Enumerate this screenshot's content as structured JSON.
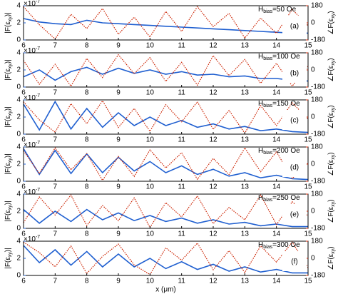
{
  "chart_data": [
    {
      "type": "line",
      "panel_label": "(a)",
      "annotation": {
        "symbol": "H",
        "subscript": "bias",
        "text": "=50 Oe"
      },
      "ylabel": {
        "main": "|F(ε",
        "sub": "xy",
        "end": ")|"
      },
      "y2label": {
        "main": "∠F(ε",
        "sub": "xy",
        "end": ")"
      },
      "multiplier": {
        "base": "×10",
        "exp": "-7"
      },
      "x": [
        6,
        6.5,
        7,
        7.5,
        8,
        8.5,
        9,
        9.5,
        10,
        10.5,
        11,
        11.5,
        12,
        12.5,
        13,
        13.5,
        14,
        14.5,
        15
      ],
      "xlim": [
        6,
        15
      ],
      "xticks": [
        6,
        7,
        8,
        9,
        10,
        11,
        12,
        13,
        14,
        15
      ],
      "ylim": [
        0,
        4
      ],
      "yticks": [
        0,
        2,
        4
      ],
      "y2lim": [
        -180,
        180
      ],
      "y2ticks": [
        -180,
        0,
        180
      ],
      "series": [
        {
          "name": "|F|",
          "color": "#1f5fd0",
          "values": [
            2.5,
            2.1,
            1.9,
            1.8,
            2.3,
            2.0,
            1.9,
            1.8,
            1.7,
            1.6,
            1.5,
            1.4,
            1.3,
            1.2,
            1.1,
            1.0,
            0.9,
            0.8,
            0.8
          ]
        },
        {
          "name": "phase",
          "color": "#cc2200",
          "axis": "y2",
          "values": [
            170,
            -20,
            -170,
            90,
            -60,
            150,
            -120,
            60,
            -150,
            120,
            -90,
            170,
            -40,
            100,
            -160,
            50,
            -110,
            140,
            -30
          ]
        }
      ]
    },
    {
      "type": "line",
      "panel_label": "(b)",
      "annotation": {
        "symbol": "H",
        "subscript": "bias",
        "text": "=100 Oe"
      },
      "ylabel": {
        "main": "|F(ε",
        "sub": "xy",
        "end": ")|"
      },
      "y2label": {
        "main": "∠F(ε",
        "sub": "xy",
        "end": ")"
      },
      "multiplier": {
        "base": "×10",
        "exp": "-7"
      },
      "x": [
        6,
        6.5,
        7,
        7.5,
        8,
        8.5,
        9,
        9.5,
        10,
        10.5,
        11,
        11.5,
        12,
        12.5,
        13,
        13.5,
        14,
        14.5,
        15
      ],
      "xlim": [
        6,
        15
      ],
      "xticks": [
        6,
        7,
        8,
        9,
        10,
        11,
        12,
        13,
        14,
        15
      ],
      "ylim": [
        0,
        4
      ],
      "yticks": [
        0,
        2,
        4
      ],
      "y2lim": [
        -180,
        180
      ],
      "y2ticks": [
        -180,
        0,
        180
      ],
      "series": [
        {
          "name": "|F|",
          "color": "#1f5fd0",
          "values": [
            1.2,
            2.0,
            0.8,
            1.8,
            2.3,
            1.5,
            2.2,
            1.6,
            2.0,
            1.5,
            1.8,
            1.4,
            1.5,
            1.2,
            1.3,
            1.0,
            1.0,
            0.8,
            0.7
          ]
        },
        {
          "name": "phase",
          "color": "#cc2200",
          "axis": "y2",
          "values": [
            100,
            -150,
            60,
            -170,
            120,
            -80,
            160,
            -40,
            130,
            -120,
            80,
            -160,
            150,
            -60,
            110,
            -140,
            70,
            -170,
            40
          ]
        }
      ]
    },
    {
      "type": "line",
      "panel_label": "(c)",
      "annotation": {
        "symbol": "H",
        "subscript": "bias",
        "text": "=150 Oe"
      },
      "ylabel": {
        "main": "|F(ε",
        "sub": "xy",
        "end": ")|"
      },
      "y2label": {
        "main": "∠F(ε",
        "sub": "xy",
        "end": ")"
      },
      "multiplier": {
        "base": "×10",
        "exp": "-7"
      },
      "x": [
        6,
        6.5,
        7,
        7.5,
        8,
        8.5,
        9,
        9.5,
        10,
        10.5,
        11,
        11.5,
        12,
        12.5,
        13,
        13.5,
        14,
        14.5,
        15
      ],
      "xlim": [
        6,
        15
      ],
      "xticks": [
        6,
        7,
        8,
        9,
        10,
        11,
        12,
        13,
        14,
        15
      ],
      "ylim": [
        0,
        4
      ],
      "yticks": [
        0,
        2,
        4
      ],
      "y2lim": [
        -180,
        180
      ],
      "y2ticks": [
        -180,
        0,
        180
      ],
      "series": [
        {
          "name": "|F|",
          "color": "#1f5fd0",
          "values": [
            3.5,
            0.5,
            3.8,
            0.6,
            3.0,
            0.8,
            2.5,
            1.0,
            2.0,
            1.0,
            1.6,
            0.8,
            1.2,
            0.6,
            0.9,
            0.4,
            0.6,
            0.3,
            0.2
          ]
        },
        {
          "name": "phase",
          "color": "#cc2200",
          "axis": "y2",
          "values": [
            160,
            -30,
            -160,
            140,
            -70,
            170,
            -110,
            90,
            -150,
            130,
            -50,
            160,
            -130,
            70,
            -170,
            120,
            -90,
            150,
            -20
          ]
        }
      ]
    },
    {
      "type": "line",
      "panel_label": "(d)",
      "annotation": {
        "symbol": "H",
        "subscript": "bias",
        "text": "=200 Oe"
      },
      "ylabel": {
        "main": "|F(ε",
        "sub": "xy",
        "end": ")|"
      },
      "y2label": {
        "main": "∠F(ε",
        "sub": "xy",
        "end": ")"
      },
      "multiplier": {
        "base": "×10",
        "exp": "-7"
      },
      "x": [
        6,
        6.5,
        7,
        7.5,
        8,
        8.5,
        9,
        9.5,
        10,
        10.5,
        11,
        11.5,
        12,
        12.5,
        13,
        13.5,
        14,
        14.5,
        15
      ],
      "xlim": [
        6,
        15
      ],
      "xticks": [
        6,
        7,
        8,
        9,
        10,
        11,
        12,
        13,
        14,
        15
      ],
      "ylim": [
        0,
        4
      ],
      "yticks": [
        0,
        2,
        4
      ],
      "y2lim": [
        -180,
        180
      ],
      "y2ticks": [
        -180,
        0,
        180
      ],
      "series": [
        {
          "name": "|F|",
          "color": "#1f5fd0",
          "values": [
            3.8,
            0.8,
            3.6,
            0.9,
            3.2,
            1.0,
            2.8,
            1.2,
            2.3,
            1.0,
            1.8,
            0.8,
            1.4,
            0.6,
            1.0,
            0.4,
            0.7,
            0.3,
            0.2
          ]
        },
        {
          "name": "phase",
          "color": "#cc2200",
          "axis": "y2",
          "values": [
            140,
            -100,
            170,
            -60,
            110,
            -170,
            80,
            -130,
            150,
            -40,
            120,
            -160,
            60,
            -110,
            170,
            -80,
            130,
            -150,
            10
          ]
        }
      ]
    },
    {
      "type": "line",
      "panel_label": "(e)",
      "annotation": {
        "symbol": "H",
        "subscript": "bias",
        "text": "=250 Oe"
      },
      "ylabel": {
        "main": "|F(ε",
        "sub": "xy",
        "end": ")|"
      },
      "y2label": {
        "main": "∠F(ε",
        "sub": "xy",
        "end": ")"
      },
      "multiplier": {
        "base": "×10",
        "exp": "-7"
      },
      "x": [
        6,
        6.5,
        7,
        7.5,
        8,
        8.5,
        9,
        9.5,
        10,
        10.5,
        11,
        11.5,
        12,
        12.5,
        13,
        13.5,
        14,
        14.5,
        15
      ],
      "xlim": [
        6,
        15
      ],
      "xticks": [
        6,
        7,
        8,
        9,
        10,
        11,
        12,
        13,
        14,
        15
      ],
      "ylim": [
        0,
        4
      ],
      "yticks": [
        0,
        2,
        4
      ],
      "y2lim": [
        -180,
        180
      ],
      "y2ticks": [
        -180,
        0,
        180
      ],
      "series": [
        {
          "name": "|F|",
          "color": "#1f5fd0",
          "values": [
            2.2,
            0.6,
            2.0,
            0.8,
            2.2,
            1.0,
            1.8,
            0.9,
            1.5,
            0.8,
            1.2,
            0.6,
            1.0,
            0.5,
            0.7,
            0.3,
            0.5,
            0.2,
            0.2
          ]
        },
        {
          "name": "phase",
          "color": "#cc2200",
          "axis": "y2",
          "values": [
            -120,
            150,
            -40,
            170,
            -150,
            60,
            -100,
            140,
            -170,
            90,
            -60,
            160,
            -130,
            40,
            -90,
            170,
            -140,
            100,
            -50
          ]
        }
      ]
    },
    {
      "type": "line",
      "panel_label": "(f)",
      "annotation": {
        "symbol": "H",
        "subscript": "bias",
        "text": "=300 Oe"
      },
      "ylabel": {
        "main": "|F(ε",
        "sub": "xy",
        "end": ")|"
      },
      "y2label": {
        "main": "∠F(ε",
        "sub": "xy",
        "end": ")"
      },
      "multiplier": {
        "base": "×10",
        "exp": "-7"
      },
      "xlabel": "x (μm)",
      "x": [
        6,
        6.5,
        7,
        7.5,
        8,
        8.5,
        9,
        9.5,
        10,
        10.5,
        11,
        11.5,
        12,
        12.5,
        13,
        13.5,
        14,
        14.5,
        15
      ],
      "xlim": [
        6,
        15
      ],
      "xticks": [
        6,
        7,
        8,
        9,
        10,
        11,
        12,
        13,
        14,
        15
      ],
      "ylim": [
        0,
        4
      ],
      "yticks": [
        0,
        2,
        4
      ],
      "y2lim": [
        -180,
        180
      ],
      "y2ticks": [
        -180,
        0,
        180
      ],
      "series": [
        {
          "name": "|F|",
          "color": "#1f5fd0",
          "values": [
            3.5,
            1.5,
            3.0,
            1.2,
            2.8,
            1.0,
            2.5,
            1.0,
            2.0,
            0.8,
            1.6,
            0.7,
            1.3,
            0.5,
            1.0,
            0.4,
            0.7,
            0.3,
            0.3
          ]
        },
        {
          "name": "phase",
          "color": "#cc2200",
          "axis": "y2",
          "values": [
            170,
            60,
            -90,
            130,
            -160,
            20,
            150,
            -70,
            -170,
            110,
            -20,
            160,
            -120,
            80,
            -150,
            130,
            -40,
            170,
            -100
          ]
        }
      ]
    }
  ]
}
